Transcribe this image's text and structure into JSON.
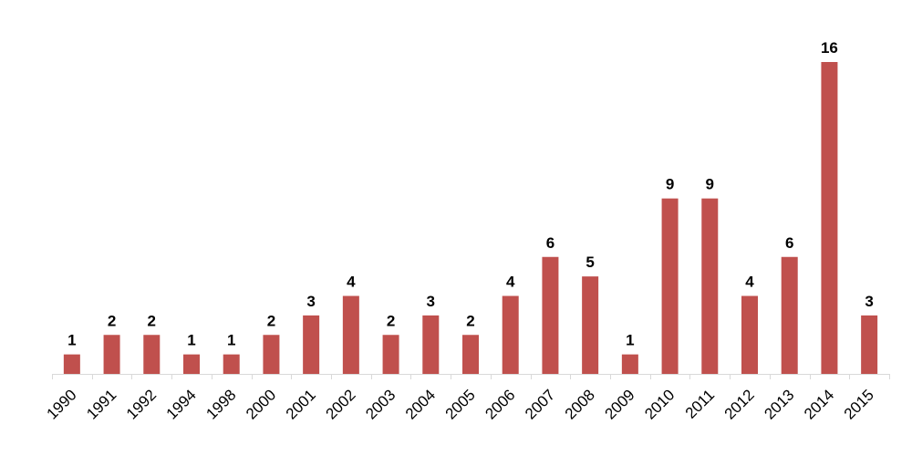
{
  "chart_data": {
    "type": "bar",
    "categories": [
      "1990",
      "1991",
      "1992",
      "1994",
      "1998",
      "2000",
      "2001",
      "2002",
      "2003",
      "2004",
      "2005",
      "2006",
      "2007",
      "2008",
      "2009",
      "2010",
      "2011",
      "2012",
      "2013",
      "2014",
      "2015"
    ],
    "values": [
      1,
      2,
      2,
      1,
      1,
      2,
      3,
      4,
      2,
      3,
      2,
      4,
      6,
      5,
      1,
      9,
      9,
      4,
      6,
      16,
      3
    ],
    "title": "",
    "xlabel": "",
    "ylabel": "",
    "ylim": [
      0,
      16
    ],
    "grid": false,
    "legend": "none",
    "data_labels": true,
    "bar_color": "#C0504D",
    "axis_color": "#D9D9D9"
  }
}
